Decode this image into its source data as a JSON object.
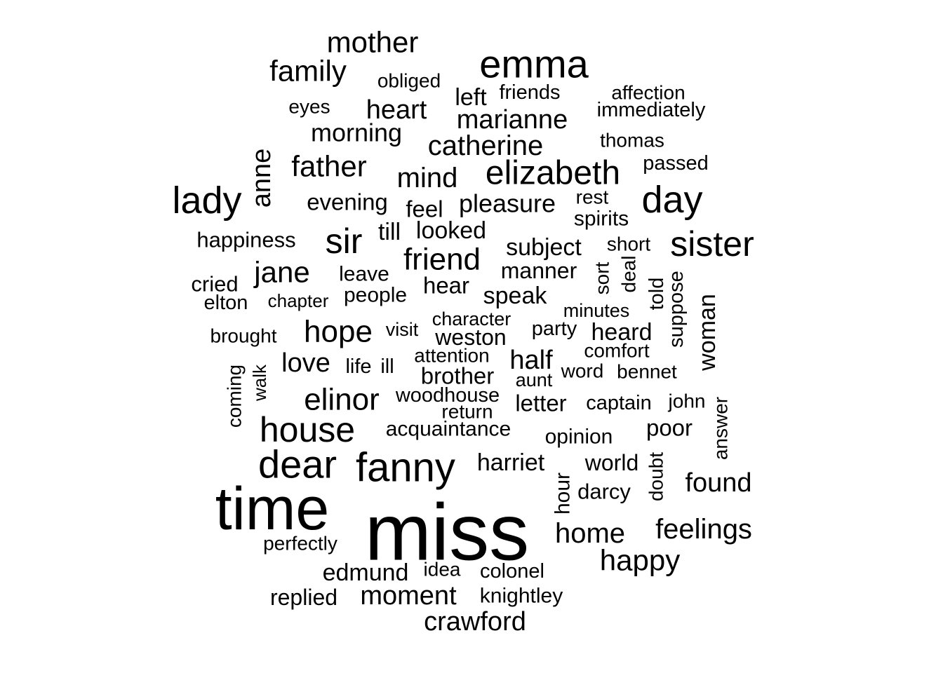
{
  "chart_data": {
    "type": "wordcloud",
    "words": [
      {
        "text": "miss",
        "weight": 100
      },
      {
        "text": "time",
        "weight": 80
      },
      {
        "text": "fanny",
        "weight": 60
      },
      {
        "text": "dear",
        "weight": 56
      },
      {
        "text": "emma",
        "weight": 55
      },
      {
        "text": "lady",
        "weight": 54
      },
      {
        "text": "house",
        "weight": 50
      },
      {
        "text": "day",
        "weight": 50
      },
      {
        "text": "sister",
        "weight": 48
      },
      {
        "text": "sir",
        "weight": 48
      },
      {
        "text": "elizabeth",
        "weight": 46
      },
      {
        "text": "elinor",
        "weight": 44
      },
      {
        "text": "hope",
        "weight": 43
      },
      {
        "text": "friend",
        "weight": 43
      },
      {
        "text": "family",
        "weight": 42
      },
      {
        "text": "mother",
        "weight": 42
      },
      {
        "text": "jane",
        "weight": 41
      },
      {
        "text": "father",
        "weight": 41
      },
      {
        "text": "happy",
        "weight": 41
      },
      {
        "text": "feelings",
        "weight": 41
      },
      {
        "text": "home",
        "weight": 41
      },
      {
        "text": "catherine",
        "weight": 40
      },
      {
        "text": "anne",
        "weight": 38
      },
      {
        "text": "moment",
        "weight": 38
      },
      {
        "text": "crawford",
        "weight": 38
      },
      {
        "text": "marianne",
        "weight": 38
      },
      {
        "text": "love",
        "weight": 38
      },
      {
        "text": "mind",
        "weight": 38
      },
      {
        "text": "found",
        "weight": 37
      },
      {
        "text": "heart",
        "weight": 36
      },
      {
        "text": "half",
        "weight": 36
      },
      {
        "text": "pleasure",
        "weight": 35
      },
      {
        "text": "morning",
        "weight": 35
      },
      {
        "text": "edmund",
        "weight": 34
      },
      {
        "text": "subject",
        "weight": 34
      },
      {
        "text": "looked",
        "weight": 34
      },
      {
        "text": "till",
        "weight": 34
      },
      {
        "text": "woman",
        "weight": 34
      },
      {
        "text": "left",
        "weight": 34
      },
      {
        "text": "harriet",
        "weight": 33
      },
      {
        "text": "heard",
        "weight": 33
      },
      {
        "text": "speak",
        "weight": 33
      },
      {
        "text": "feel",
        "weight": 33
      },
      {
        "text": "evening",
        "weight": 32
      },
      {
        "text": "manner",
        "weight": 32
      },
      {
        "text": "hear",
        "weight": 32
      },
      {
        "text": "poor",
        "weight": 32
      },
      {
        "text": "letter",
        "weight": 32
      },
      {
        "text": "replied",
        "weight": 32
      },
      {
        "text": "brother",
        "weight": 32
      },
      {
        "text": "weston",
        "weight": 32
      },
      {
        "text": "world",
        "weight": 32
      },
      {
        "text": "hour",
        "weight": 31
      },
      {
        "text": "happiness",
        "weight": 31
      },
      {
        "text": "cried",
        "weight": 31
      },
      {
        "text": "darcy",
        "weight": 31
      },
      {
        "text": "people",
        "weight": 30
      },
      {
        "text": "acquaintance",
        "weight": 30
      },
      {
        "text": "opinion",
        "weight": 30
      },
      {
        "text": "knightley",
        "weight": 30
      },
      {
        "text": "leave",
        "weight": 30
      },
      {
        "text": "spirits",
        "weight": 30
      },
      {
        "text": "passed",
        "weight": 29
      },
      {
        "text": "immediately",
        "weight": 29
      },
      {
        "text": "friends",
        "weight": 29
      },
      {
        "text": "suppose",
        "weight": 29
      },
      {
        "text": "told",
        "weight": 29
      },
      {
        "text": "party",
        "weight": 29
      },
      {
        "text": "colonel",
        "weight": 29
      },
      {
        "text": "life",
        "weight": 29
      },
      {
        "text": "ill",
        "weight": 29
      },
      {
        "text": "captain",
        "weight": 29
      },
      {
        "text": "woodhouse",
        "weight": 29
      },
      {
        "text": "elton",
        "weight": 29
      },
      {
        "text": "coming",
        "weight": 28
      },
      {
        "text": "brought",
        "weight": 28
      },
      {
        "text": "obliged",
        "weight": 28
      },
      {
        "text": "affection",
        "weight": 28
      },
      {
        "text": "eyes",
        "weight": 28
      },
      {
        "text": "thomas",
        "weight": 28
      },
      {
        "text": "short",
        "weight": 28
      },
      {
        "text": "rest",
        "weight": 28
      },
      {
        "text": "sort",
        "weight": 28
      },
      {
        "text": "deal",
        "weight": 28
      },
      {
        "text": "attention",
        "weight": 28
      },
      {
        "text": "return",
        "weight": 28
      },
      {
        "text": "comfort",
        "weight": 28
      },
      {
        "text": "bennet",
        "weight": 28
      },
      {
        "text": "word",
        "weight": 28
      },
      {
        "text": "john",
        "weight": 28
      },
      {
        "text": "doubt",
        "weight": 28
      },
      {
        "text": "answer",
        "weight": 28
      },
      {
        "text": "perfectly",
        "weight": 28
      },
      {
        "text": "idea",
        "weight": 28
      },
      {
        "text": "visit",
        "weight": 27
      },
      {
        "text": "character",
        "weight": 27
      },
      {
        "text": "minutes",
        "weight": 27
      },
      {
        "text": "aunt",
        "weight": 27
      },
      {
        "text": "chapter",
        "weight": 26
      },
      {
        "text": "walk",
        "weight": 26
      }
    ]
  }
}
